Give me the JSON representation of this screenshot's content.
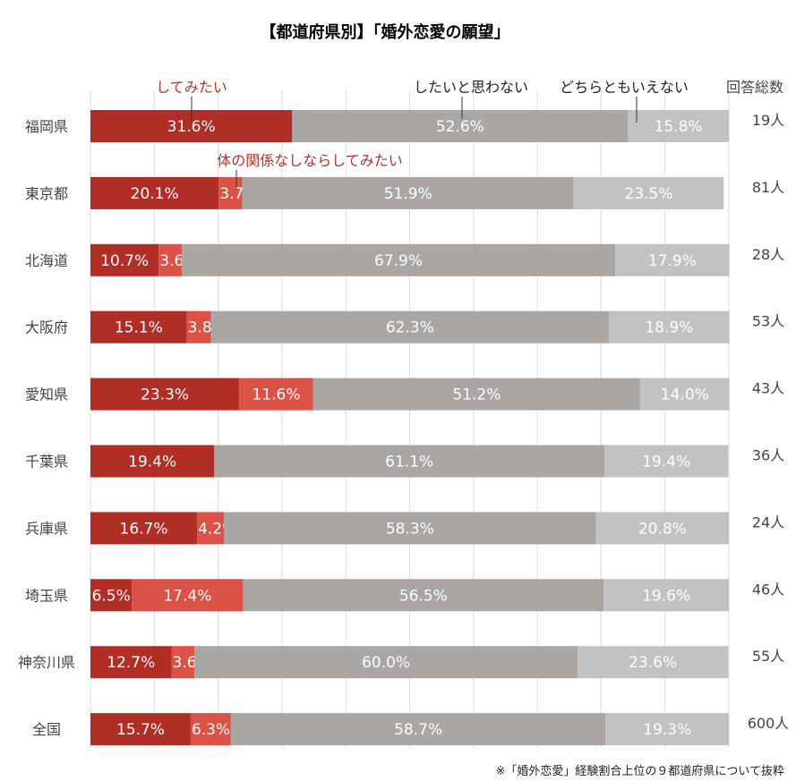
{
  "colors": [
    "#b02e25",
    "#dc5246",
    "#aaa6a4",
    "#c2c2c2"
  ],
  "chart_data": {
    "type": "bar",
    "orientation": "horizontal",
    "stacked": true,
    "title": "【都道府県別】「婚外恋愛の願望」",
    "xlim": [
      0,
      100
    ],
    "grid": true,
    "categories": [
      "福岡県",
      "東京都",
      "北海道",
      "大阪府",
      "愛知県",
      "千葉県",
      "兵庫県",
      "埼玉県",
      "神奈川県",
      "全国"
    ],
    "series": [
      {
        "name": "してみたい",
        "values": [
          31.6,
          20.1,
          10.7,
          15.1,
          23.3,
          19.4,
          16.7,
          6.5,
          12.7,
          15.7
        ]
      },
      {
        "name": "体の関係なしならしてみたい",
        "values": [
          0,
          3.7,
          3.6,
          3.8,
          11.6,
          0,
          4.2,
          17.4,
          3.6,
          6.3
        ]
      },
      {
        "name": "したいと思わない",
        "values": [
          52.6,
          51.9,
          67.9,
          62.3,
          51.2,
          61.1,
          58.3,
          56.5,
          60.0,
          58.7
        ]
      },
      {
        "name": "どちらともいえない",
        "values": [
          15.8,
          23.5,
          17.9,
          18.9,
          14.0,
          19.4,
          20.8,
          19.6,
          23.6,
          19.3
        ]
      }
    ],
    "counts_header": "回答総数",
    "counts": [
      "19人",
      "81人",
      "28人",
      "53人",
      "43人",
      "36人",
      "24人",
      "46人",
      "55人",
      "600人"
    ],
    "footnote": "※「婚外恋愛」経験割合上位の９都道府県について抜粋"
  }
}
